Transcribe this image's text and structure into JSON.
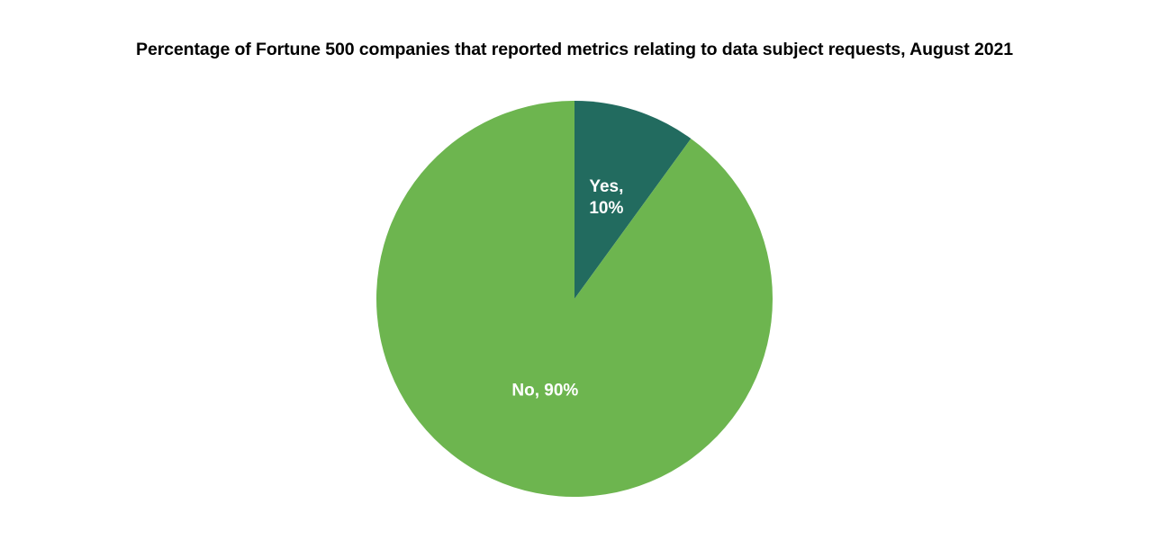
{
  "chart_data": {
    "type": "pie",
    "title": "Percentage of Fortune 500 companies that reported metrics relating to data subject requests, August 2021",
    "start_angle_deg": 0,
    "direction": "clockwise",
    "slices": [
      {
        "label": "Yes,",
        "value_label": "10%",
        "value": 10,
        "color": "#226B5F"
      },
      {
        "label": "No,",
        "value_label": "90%",
        "value": 90,
        "color": "#6DB54F"
      }
    ]
  }
}
